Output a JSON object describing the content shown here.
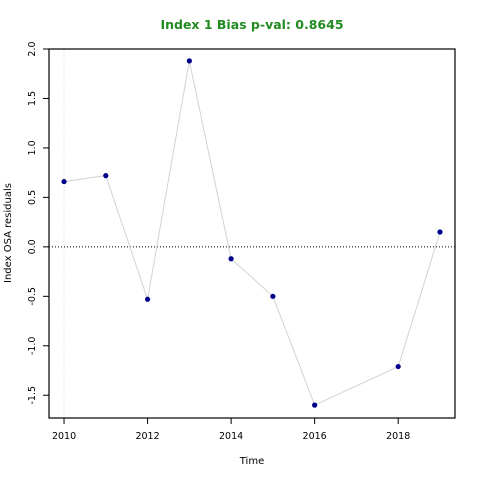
{
  "colors": {
    "title": "#228B22",
    "points": "#00008B",
    "line": "#D3D3D3",
    "zero_line": "#000000",
    "vline": "#D3D3D3"
  },
  "chart_data": {
    "type": "scatter",
    "title": "Index 1 Bias p-val: 0.8645",
    "xlabel": "Time",
    "ylabel": "Index OSA residuals",
    "xlim": [
      2009.64,
      2019.36
    ],
    "ylim": [
      -1.73,
      2.0
    ],
    "x_ticks": [
      2010,
      2012,
      2014,
      2016,
      2018
    ],
    "x_tick_labels": [
      "2010",
      "2012",
      "2014",
      "2016",
      "2018"
    ],
    "y_ticks": [
      -1.5,
      -1.0,
      -0.5,
      0.0,
      0.5,
      1.0,
      1.5,
      2.0
    ],
    "y_tick_labels": [
      "-1.5",
      "-1.0",
      "-0.5",
      "0.0",
      "0.5",
      "1.0",
      "1.5",
      "2.0"
    ],
    "reference_lines": {
      "horizontal_y": 0.0,
      "vertical_x": 2010
    },
    "grid": false,
    "series": [
      {
        "x": [
          2010,
          2011,
          2012,
          2013,
          2014,
          2015,
          2016,
          2018,
          2019
        ],
        "y": [
          0.66,
          0.72,
          -0.53,
          1.88,
          -0.12,
          -0.5,
          -1.6,
          -1.21,
          0.15
        ]
      }
    ]
  }
}
